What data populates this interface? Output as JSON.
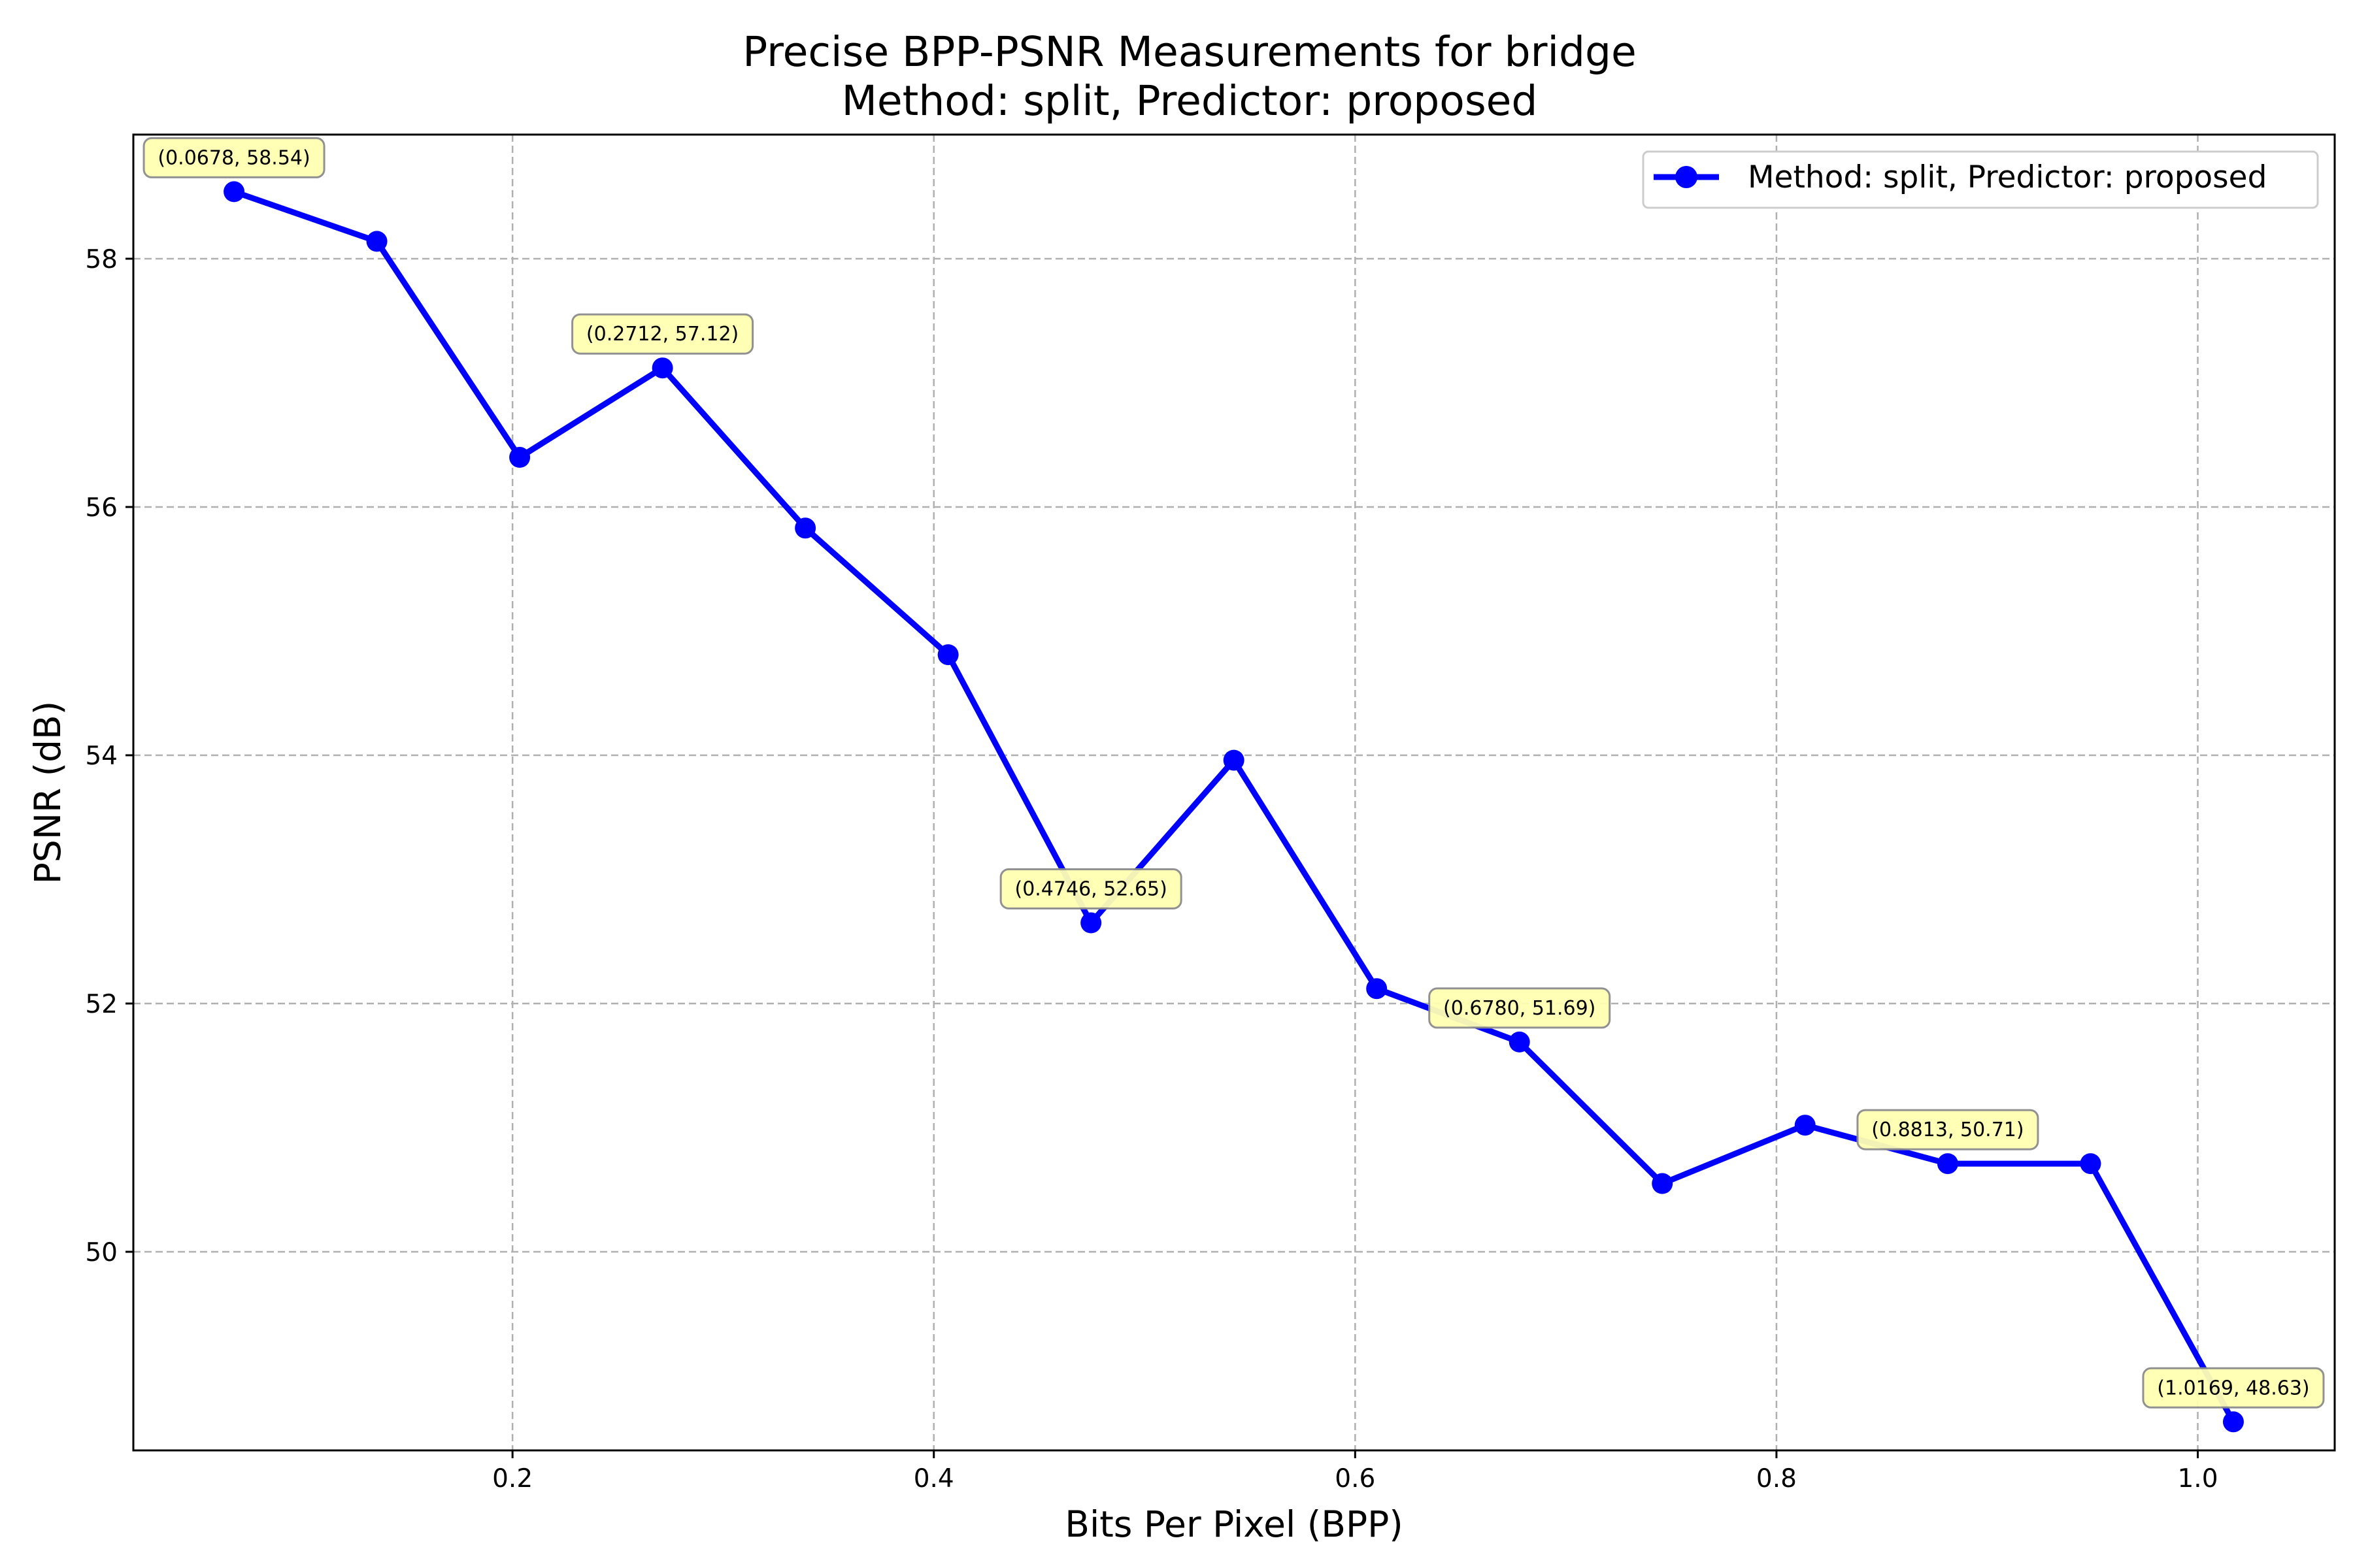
{
  "chart_data": {
    "type": "line",
    "title": "Precise BPP-PSNR Measurements for bridge",
    "subtitle": "Method: split, Predictor: proposed",
    "xlabel": "Bits Per Pixel (BPP)",
    "ylabel": "PSNR (dB)",
    "xlim": [
      0.02,
      1.065
    ],
    "ylim": [
      48.4,
      59.0
    ],
    "xticks": [
      0.2,
      0.4,
      0.6,
      0.8,
      1.0
    ],
    "xtick_labels": [
      "0.2",
      "0.4",
      "0.6",
      "0.8",
      "1.0"
    ],
    "yticks": [
      50,
      52,
      54,
      56,
      58
    ],
    "ytick_labels": [
      "50",
      "52",
      "54",
      "56",
      "58"
    ],
    "grid": true,
    "legend_position": "top-right",
    "series": [
      {
        "name": "Method: split, Predictor: proposed",
        "color": "#0000ff",
        "marker": "circle",
        "x": [
          0.0678,
          0.1356,
          0.2034,
          0.2712,
          0.339,
          0.4068,
          0.4746,
          0.5424,
          0.6102,
          0.678,
          0.7458,
          0.8136,
          0.8813,
          0.9491,
          1.0169
        ],
        "y": [
          58.54,
          58.14,
          56.4,
          57.12,
          55.83,
          54.81,
          52.65,
          53.96,
          52.12,
          51.69,
          50.55,
          51.02,
          50.71,
          50.71,
          48.63
        ]
      }
    ],
    "annotations": [
      {
        "text": "(0.0678, 58.54)",
        "x": 0.0678,
        "y": 58.54
      },
      {
        "text": "(0.2712, 57.12)",
        "x": 0.2712,
        "y": 57.12
      },
      {
        "text": "(0.4746, 52.65)",
        "x": 0.4746,
        "y": 52.65
      },
      {
        "text": "(0.6780, 51.69)",
        "x": 0.678,
        "y": 51.69
      },
      {
        "text": "(0.8813, 50.71)",
        "x": 0.8813,
        "y": 50.71
      },
      {
        "text": "(1.0169, 48.63)",
        "x": 1.0169,
        "y": 48.63
      }
    ]
  }
}
